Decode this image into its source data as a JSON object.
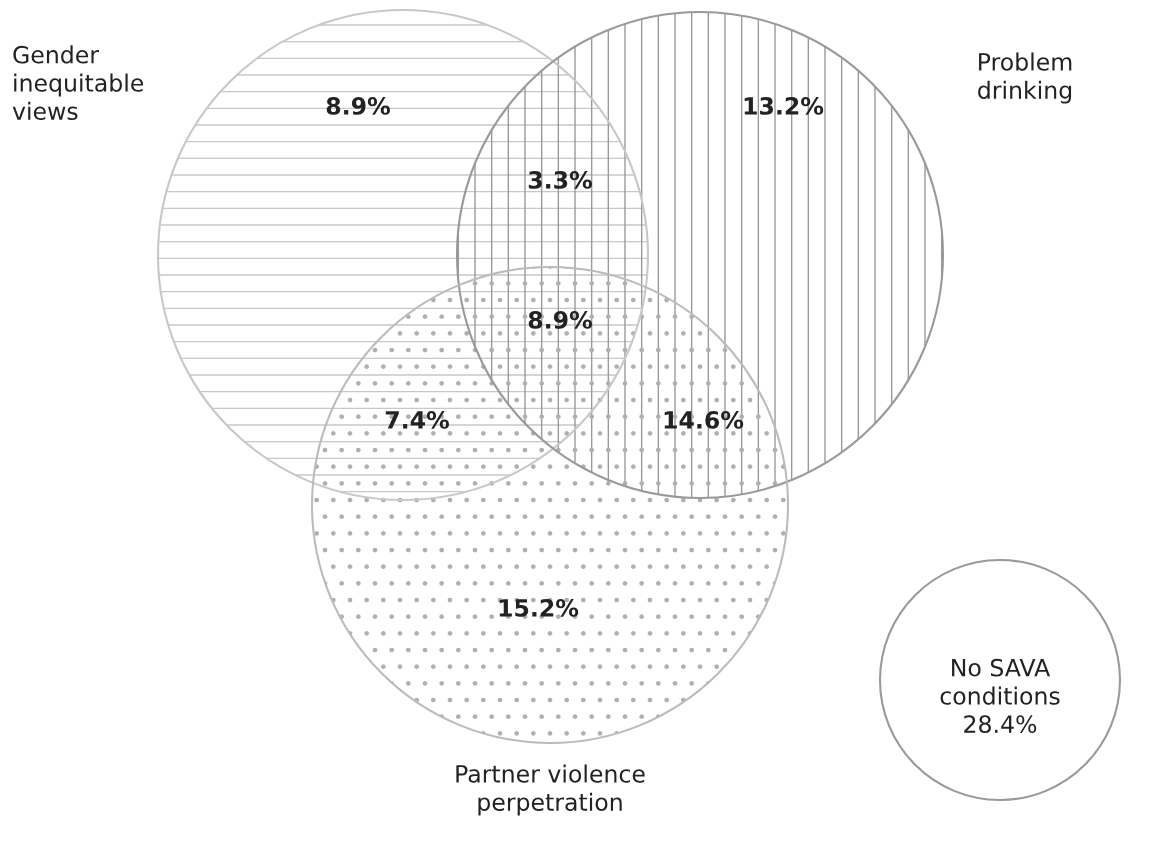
{
  "chart_data": {
    "type": "other",
    "categories": [
      null,
      null,
      null,
      null,
      null,
      null,
      null,
      "No SAVA conditions"
    ],
    "values": [
      8.9,
      13.2,
      3.3,
      8.9,
      7.4,
      14.6,
      15.2,
      28.4
    ],
    "value_labels": [
      "8.9%",
      "13.2%",
      "3.3%",
      "8.9%",
      "7.4%",
      "14.6%",
      "15.2%",
      "28.4%"
    ],
    "annotations": [
      "Gender\ninequitable\nviews",
      "Problem\ndrinking",
      "Partner violence\nperpetration"
    ]
  }
}
